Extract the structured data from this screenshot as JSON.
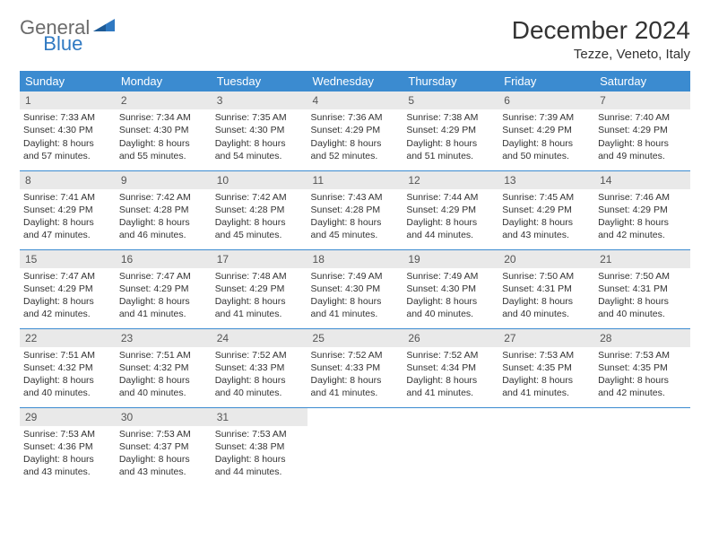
{
  "logo": {
    "general": "General",
    "blue": "Blue"
  },
  "title": "December 2024",
  "location": "Tezze, Veneto, Italy",
  "colors": {
    "header_bg": "#3b8bd0",
    "header_text": "#ffffff",
    "daynum_bg": "#e9e9e9",
    "border": "#3b8bd0",
    "logo_gray": "#6b6b6b",
    "logo_blue": "#2f79c2"
  },
  "weekdays": [
    "Sunday",
    "Monday",
    "Tuesday",
    "Wednesday",
    "Thursday",
    "Friday",
    "Saturday"
  ],
  "weeks": [
    [
      {
        "n": "1",
        "sr": "Sunrise: 7:33 AM",
        "ss": "Sunset: 4:30 PM",
        "d1": "Daylight: 8 hours",
        "d2": "and 57 minutes."
      },
      {
        "n": "2",
        "sr": "Sunrise: 7:34 AM",
        "ss": "Sunset: 4:30 PM",
        "d1": "Daylight: 8 hours",
        "d2": "and 55 minutes."
      },
      {
        "n": "3",
        "sr": "Sunrise: 7:35 AM",
        "ss": "Sunset: 4:30 PM",
        "d1": "Daylight: 8 hours",
        "d2": "and 54 minutes."
      },
      {
        "n": "4",
        "sr": "Sunrise: 7:36 AM",
        "ss": "Sunset: 4:29 PM",
        "d1": "Daylight: 8 hours",
        "d2": "and 52 minutes."
      },
      {
        "n": "5",
        "sr": "Sunrise: 7:38 AM",
        "ss": "Sunset: 4:29 PM",
        "d1": "Daylight: 8 hours",
        "d2": "and 51 minutes."
      },
      {
        "n": "6",
        "sr": "Sunrise: 7:39 AM",
        "ss": "Sunset: 4:29 PM",
        "d1": "Daylight: 8 hours",
        "d2": "and 50 minutes."
      },
      {
        "n": "7",
        "sr": "Sunrise: 7:40 AM",
        "ss": "Sunset: 4:29 PM",
        "d1": "Daylight: 8 hours",
        "d2": "and 49 minutes."
      }
    ],
    [
      {
        "n": "8",
        "sr": "Sunrise: 7:41 AM",
        "ss": "Sunset: 4:29 PM",
        "d1": "Daylight: 8 hours",
        "d2": "and 47 minutes."
      },
      {
        "n": "9",
        "sr": "Sunrise: 7:42 AM",
        "ss": "Sunset: 4:28 PM",
        "d1": "Daylight: 8 hours",
        "d2": "and 46 minutes."
      },
      {
        "n": "10",
        "sr": "Sunrise: 7:42 AM",
        "ss": "Sunset: 4:28 PM",
        "d1": "Daylight: 8 hours",
        "d2": "and 45 minutes."
      },
      {
        "n": "11",
        "sr": "Sunrise: 7:43 AM",
        "ss": "Sunset: 4:28 PM",
        "d1": "Daylight: 8 hours",
        "d2": "and 45 minutes."
      },
      {
        "n": "12",
        "sr": "Sunrise: 7:44 AM",
        "ss": "Sunset: 4:29 PM",
        "d1": "Daylight: 8 hours",
        "d2": "and 44 minutes."
      },
      {
        "n": "13",
        "sr": "Sunrise: 7:45 AM",
        "ss": "Sunset: 4:29 PM",
        "d1": "Daylight: 8 hours",
        "d2": "and 43 minutes."
      },
      {
        "n": "14",
        "sr": "Sunrise: 7:46 AM",
        "ss": "Sunset: 4:29 PM",
        "d1": "Daylight: 8 hours",
        "d2": "and 42 minutes."
      }
    ],
    [
      {
        "n": "15",
        "sr": "Sunrise: 7:47 AM",
        "ss": "Sunset: 4:29 PM",
        "d1": "Daylight: 8 hours",
        "d2": "and 42 minutes."
      },
      {
        "n": "16",
        "sr": "Sunrise: 7:47 AM",
        "ss": "Sunset: 4:29 PM",
        "d1": "Daylight: 8 hours",
        "d2": "and 41 minutes."
      },
      {
        "n": "17",
        "sr": "Sunrise: 7:48 AM",
        "ss": "Sunset: 4:29 PM",
        "d1": "Daylight: 8 hours",
        "d2": "and 41 minutes."
      },
      {
        "n": "18",
        "sr": "Sunrise: 7:49 AM",
        "ss": "Sunset: 4:30 PM",
        "d1": "Daylight: 8 hours",
        "d2": "and 41 minutes."
      },
      {
        "n": "19",
        "sr": "Sunrise: 7:49 AM",
        "ss": "Sunset: 4:30 PM",
        "d1": "Daylight: 8 hours",
        "d2": "and 40 minutes."
      },
      {
        "n": "20",
        "sr": "Sunrise: 7:50 AM",
        "ss": "Sunset: 4:31 PM",
        "d1": "Daylight: 8 hours",
        "d2": "and 40 minutes."
      },
      {
        "n": "21",
        "sr": "Sunrise: 7:50 AM",
        "ss": "Sunset: 4:31 PM",
        "d1": "Daylight: 8 hours",
        "d2": "and 40 minutes."
      }
    ],
    [
      {
        "n": "22",
        "sr": "Sunrise: 7:51 AM",
        "ss": "Sunset: 4:32 PM",
        "d1": "Daylight: 8 hours",
        "d2": "and 40 minutes."
      },
      {
        "n": "23",
        "sr": "Sunrise: 7:51 AM",
        "ss": "Sunset: 4:32 PM",
        "d1": "Daylight: 8 hours",
        "d2": "and 40 minutes."
      },
      {
        "n": "24",
        "sr": "Sunrise: 7:52 AM",
        "ss": "Sunset: 4:33 PM",
        "d1": "Daylight: 8 hours",
        "d2": "and 40 minutes."
      },
      {
        "n": "25",
        "sr": "Sunrise: 7:52 AM",
        "ss": "Sunset: 4:33 PM",
        "d1": "Daylight: 8 hours",
        "d2": "and 41 minutes."
      },
      {
        "n": "26",
        "sr": "Sunrise: 7:52 AM",
        "ss": "Sunset: 4:34 PM",
        "d1": "Daylight: 8 hours",
        "d2": "and 41 minutes."
      },
      {
        "n": "27",
        "sr": "Sunrise: 7:53 AM",
        "ss": "Sunset: 4:35 PM",
        "d1": "Daylight: 8 hours",
        "d2": "and 41 minutes."
      },
      {
        "n": "28",
        "sr": "Sunrise: 7:53 AM",
        "ss": "Sunset: 4:35 PM",
        "d1": "Daylight: 8 hours",
        "d2": "and 42 minutes."
      }
    ],
    [
      {
        "n": "29",
        "sr": "Sunrise: 7:53 AM",
        "ss": "Sunset: 4:36 PM",
        "d1": "Daylight: 8 hours",
        "d2": "and 43 minutes."
      },
      {
        "n": "30",
        "sr": "Sunrise: 7:53 AM",
        "ss": "Sunset: 4:37 PM",
        "d1": "Daylight: 8 hours",
        "d2": "and 43 minutes."
      },
      {
        "n": "31",
        "sr": "Sunrise: 7:53 AM",
        "ss": "Sunset: 4:38 PM",
        "d1": "Daylight: 8 hours",
        "d2": "and 44 minutes."
      },
      null,
      null,
      null,
      null
    ]
  ]
}
